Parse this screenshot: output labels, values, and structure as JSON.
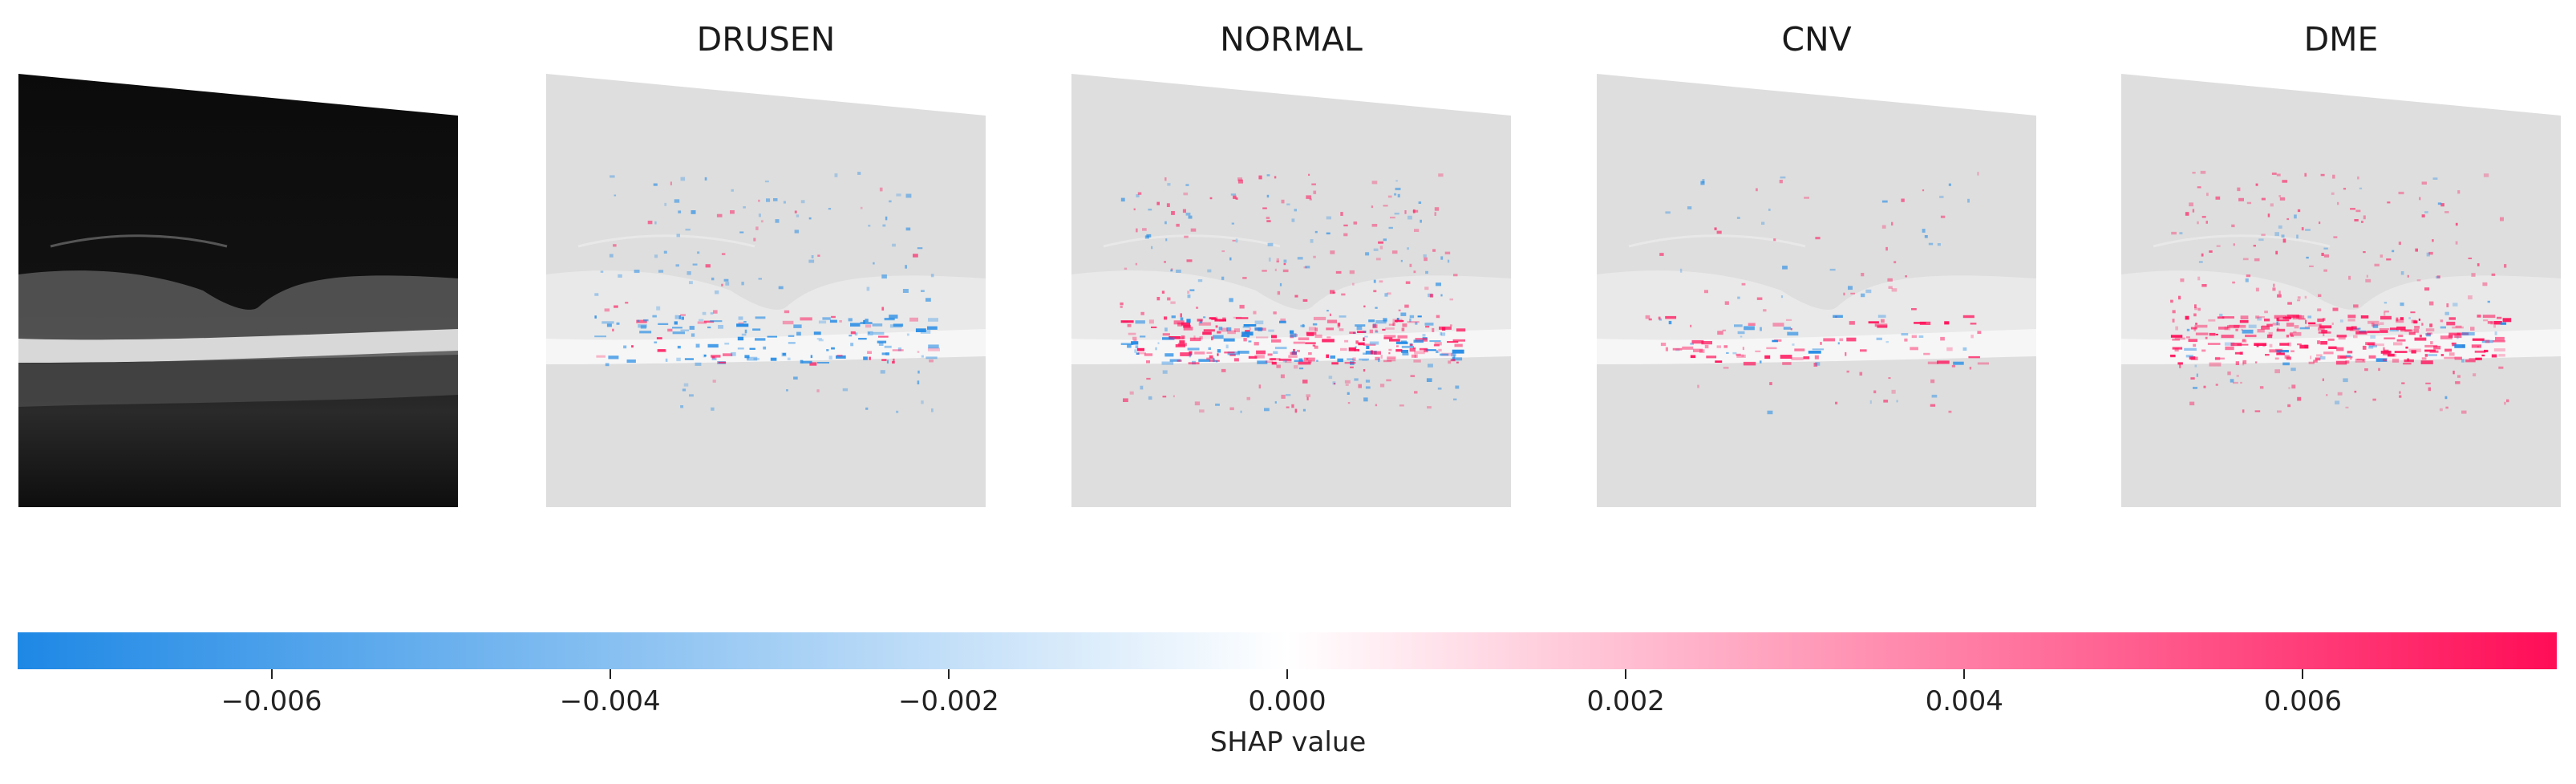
{
  "panels": [
    {
      "title": "",
      "kind": "oct-scan"
    },
    {
      "title": "DRUSEN",
      "kind": "shap-map"
    },
    {
      "title": "NORMAL",
      "kind": "shap-map"
    },
    {
      "title": "CNV",
      "kind": "shap-map"
    },
    {
      "title": "DME",
      "kind": "shap-map"
    }
  ],
  "colorbar": {
    "label": "SHAP value",
    "min": -0.0075,
    "max": 0.0075,
    "ticks": [
      "−0.006",
      "−0.004",
      "−0.002",
      "0.000",
      "0.002",
      "0.004",
      "0.006"
    ],
    "tick_values": [
      -0.006,
      -0.004,
      -0.002,
      0.0,
      0.002,
      0.004,
      0.006
    ],
    "colors": {
      "negative": "#1e88e5",
      "zero": "#ffffff",
      "positive": "#ff0d57"
    }
  }
}
